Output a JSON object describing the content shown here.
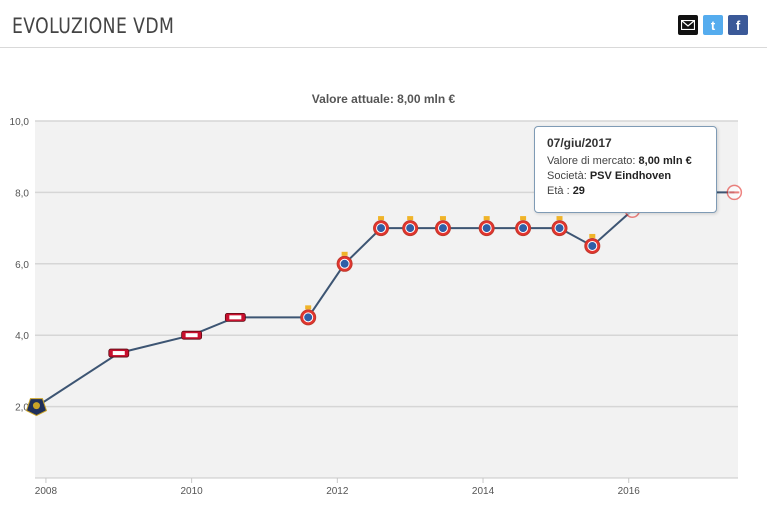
{
  "header": {
    "title": "EVOLUZIONE VDM",
    "share": {
      "mail_icon": "envelope-icon",
      "twitter_icon": "twitter-icon",
      "facebook_icon": "facebook-icon",
      "twitter_glyph": "t",
      "facebook_glyph": "f"
    }
  },
  "chart_data": {
    "type": "line",
    "title": "",
    "subtitle": "Valore attuale: 8,00 mln €",
    "xlabel": "",
    "ylabel": "",
    "xlim": [
      2007.85,
      2017.5
    ],
    "ylim": [
      0,
      10
    ],
    "x_ticks": [
      2008,
      2010,
      2012,
      2014,
      2016
    ],
    "x_tick_labels": [
      "2008",
      "2010",
      "2012",
      "2014",
      "2016"
    ],
    "y_ticks": [
      2,
      4,
      6,
      8,
      10
    ],
    "y_tick_labels": [
      "2,0",
      "4,0",
      "6,0",
      "8,0",
      "10,0"
    ],
    "grid": true,
    "line_color": "#3d5573",
    "series": [
      {
        "points": [
          {
            "x": 2007.87,
            "y": 2.0,
            "club": "pumas"
          },
          {
            "x": 2009.0,
            "y": 3.5,
            "club": "az"
          },
          {
            "x": 2010.0,
            "y": 4.0,
            "club": "az"
          },
          {
            "x": 2010.6,
            "y": 4.5,
            "club": "az"
          },
          {
            "x": 2011.6,
            "y": 4.5,
            "club": "espanyol"
          },
          {
            "x": 2012.1,
            "y": 6.0,
            "club": "espanyol"
          },
          {
            "x": 2012.6,
            "y": 7.0,
            "club": "espanyol"
          },
          {
            "x": 2013.0,
            "y": 7.0,
            "club": "espanyol"
          },
          {
            "x": 2013.45,
            "y": 7.0,
            "club": "espanyol"
          },
          {
            "x": 2014.05,
            "y": 7.0,
            "club": "espanyol"
          },
          {
            "x": 2014.55,
            "y": 7.0,
            "club": "espanyol"
          },
          {
            "x": 2015.05,
            "y": 7.0,
            "club": "espanyol"
          },
          {
            "x": 2015.5,
            "y": 6.5,
            "club": "espanyol"
          },
          {
            "x": 2016.05,
            "y": 7.5,
            "club": "psv"
          },
          {
            "x": 2016.5,
            "y": 8.0,
            "club": "psv"
          },
          {
            "x": 2017.0,
            "y": 8.0,
            "club": "psv"
          },
          {
            "x": 2017.45,
            "y": 8.0,
            "club": "psv"
          }
        ]
      }
    ],
    "tooltip": {
      "date": "07/giu/2017",
      "value_label": "Valore di mercato:",
      "value": "8,00 mln €",
      "club_label": "Società:",
      "club": "PSV Eindhoven",
      "age_label": "Età :",
      "age": "29"
    }
  }
}
